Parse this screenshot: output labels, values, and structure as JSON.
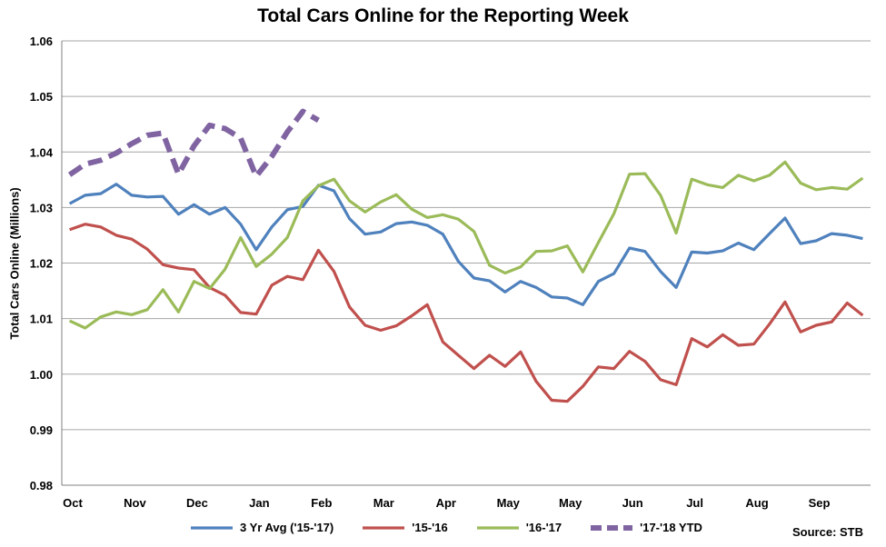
{
  "chart_data": {
    "type": "line",
    "title": "Total Cars Online for the Reporting Week",
    "xlabel": "",
    "ylabel": "Total Cars Online (Millions)",
    "ylim": [
      0.98,
      1.06
    ],
    "yticks": [
      "0.98",
      "0.99",
      "1.00",
      "1.01",
      "1.02",
      "1.03",
      "1.04",
      "1.05",
      "1.06"
    ],
    "month_labels": [
      "Oct",
      "Nov",
      "Dec",
      "Jan",
      "Feb",
      "Mar",
      "Apr",
      "May",
      "May",
      "Jun",
      "Jul",
      "Aug",
      "Sep"
    ],
    "weeks": 52,
    "grid": "horizontal",
    "legend_position": "bottom",
    "source": "Source:  STB",
    "series": [
      {
        "name": "3 Yr Avg ('15-'17)",
        "color": "#4f81bd",
        "dash": false,
        "values": [
          1.0307,
          1.0322,
          1.0325,
          1.0342,
          1.0322,
          1.0319,
          1.032,
          1.0288,
          1.0305,
          1.0288,
          1.03,
          1.027,
          1.0224,
          1.0265,
          1.0296,
          1.0302,
          1.034,
          1.033,
          1.028,
          1.0252,
          1.0256,
          1.0271,
          1.0274,
          1.0268,
          1.0252,
          1.0203,
          1.0173,
          1.0168,
          1.0148,
          1.0167,
          1.0156,
          1.0139,
          1.0137,
          1.0125,
          1.0167,
          1.0181,
          1.0227,
          1.0221,
          1.0185,
          1.0156,
          1.022,
          1.0218,
          1.0222,
          1.0236,
          1.0224,
          1.0253,
          1.0281,
          1.0235,
          1.024,
          1.0253,
          1.025,
          1.0244
        ]
      },
      {
        "name": "'15-'16",
        "color": "#c0504d",
        "dash": false,
        "values": [
          1.026,
          1.027,
          1.0265,
          1.025,
          1.0243,
          1.0225,
          1.0197,
          1.0191,
          1.0188,
          1.0156,
          1.0142,
          1.0111,
          1.0108,
          1.016,
          1.0176,
          1.017,
          1.0223,
          1.0185,
          1.0121,
          1.0088,
          1.0079,
          1.0087,
          1.0105,
          1.0125,
          1.0058,
          1.0034,
          1.001,
          1.0034,
          1.0014,
          1.004,
          0.9987,
          0.9953,
          0.9951,
          0.9978,
          1.0013,
          1.001,
          1.0041,
          1.0023,
          0.999,
          0.9981,
          1.0064,
          1.0049,
          1.0071,
          1.0052,
          1.0054,
          1.009,
          1.013,
          1.0076,
          1.0088,
          1.0094,
          1.0128,
          1.0106
        ]
      },
      {
        "name": "'16-'17",
        "color": "#9bbb59",
        "dash": false,
        "values": [
          1.0096,
          1.0083,
          1.0103,
          1.0112,
          1.0107,
          1.0116,
          1.0152,
          1.0112,
          1.0167,
          1.0154,
          1.0189,
          1.0246,
          1.0194,
          1.0216,
          1.0246,
          1.0312,
          1.0339,
          1.0351,
          1.0312,
          1.0292,
          1.031,
          1.0323,
          1.0297,
          1.0282,
          1.0287,
          1.0279,
          1.0257,
          1.0196,
          1.0182,
          1.0193,
          1.0221,
          1.0222,
          1.0231,
          1.0184,
          1.0237,
          1.0289,
          1.036,
          1.0361,
          1.0322,
          1.0254,
          1.0351,
          1.0341,
          1.0336,
          1.0358,
          1.0348,
          1.0358,
          1.0382,
          1.0344,
          1.0332,
          1.0336,
          1.0333,
          1.0353
        ]
      },
      {
        "name": "'17-'18 YTD",
        "color": "#8064a2",
        "dash": true,
        "values": [
          1.0359,
          1.0378,
          1.0385,
          1.0398,
          1.0415,
          1.043,
          1.0434,
          1.036,
          1.0411,
          1.0448,
          1.0442,
          1.0425,
          1.0356,
          1.0392,
          1.0436,
          1.0473,
          1.0457
        ]
      }
    ]
  }
}
